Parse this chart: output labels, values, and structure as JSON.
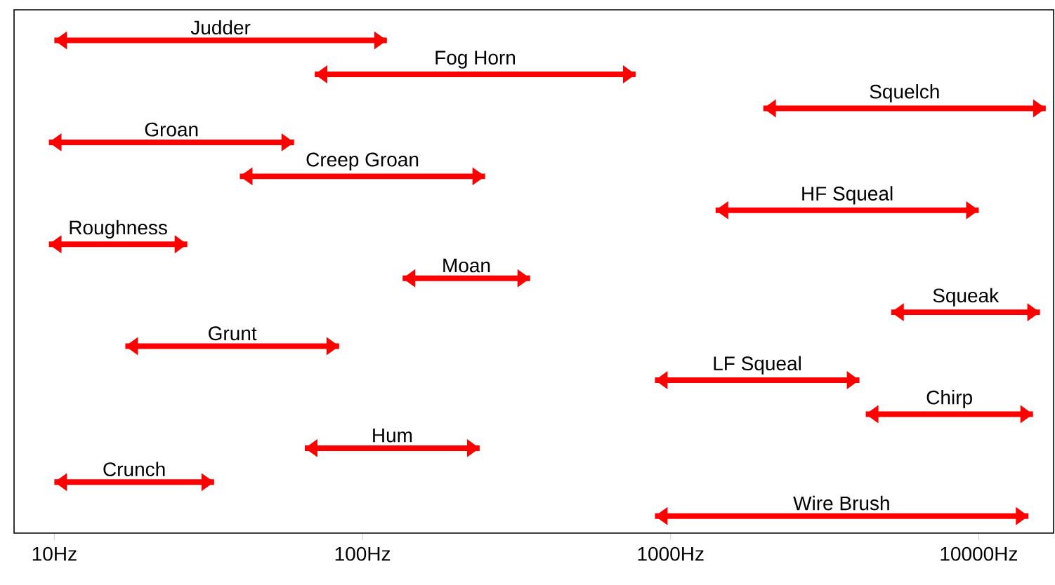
{
  "chart_data": {
    "type": "bar",
    "orientation": "horizontal",
    "log": "x",
    "tick_labels": "x",
    "color": "#ff0000",
    "categories": [
      "Judder",
      "Fog Horn",
      "Squelch",
      "Groan",
      "Creep Groan",
      "HF Squeal",
      "Roughness",
      "Moan",
      "Squeak",
      "Grunt",
      "LF Squeal",
      "Chirp",
      "Hum",
      "Crunch",
      "Wire Brush"
    ],
    "base": [
      10,
      70,
      2000,
      9.6,
      40,
      1400,
      9.6,
      135,
      5200,
      17,
      890,
      4300,
      65,
      10,
      890
    ],
    "values": [
      110,
      700,
      14500,
      50.4,
      210,
      8600,
      17.4,
      215,
      10600,
      67,
      3210,
      10700,
      175,
      23,
      13610
    ],
    "xlim": [
      7.4,
      17500
    ],
    "xticks": [
      {
        "value": 10,
        "label": "10Hz"
      },
      {
        "value": 100,
        "label": "100Hz"
      },
      {
        "value": 1000,
        "label": "1000Hz"
      },
      {
        "value": 10000,
        "label": "10000Hz"
      }
    ]
  }
}
